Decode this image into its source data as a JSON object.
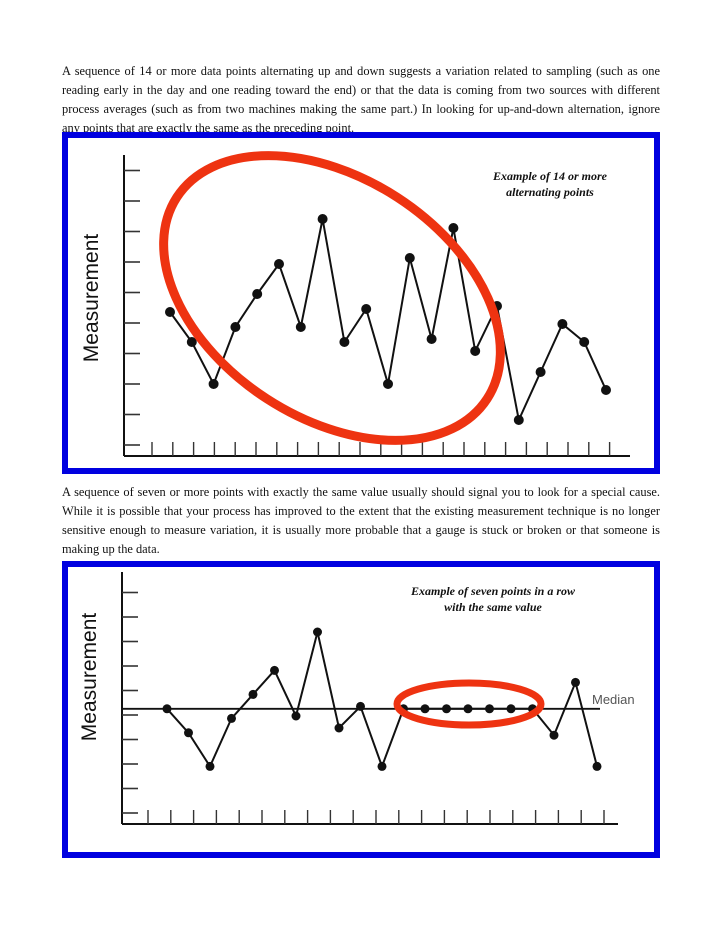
{
  "paragraphs": {
    "p1": "A sequence of 14 or more data points alternating up and down suggests a variation related to sampling (such as one reading early in the day and one reading toward the end) or that the data is coming from two sources with different process averages (such as from two machines making the same part.) In looking for up-and-down alternation, ignore any points that are exactly the same as the preceding point.",
    "p2": "A sequence of seven or more points with exactly the same value usually should signal you to look for a special cause. While it is possible that your process has improved to the extent that the existing measurement technique is no longer sensitive enough to measure variation, it is usually more probable that a gauge is stuck or broken or that someone is making up the data."
  },
  "colors": {
    "frame": "#0000e0",
    "highlight": "#ee3311",
    "line": "#111111"
  },
  "chart_data": [
    {
      "type": "line",
      "title": "",
      "annotation": [
        "Example of 14 or more",
        "alternating points"
      ],
      "ylabel": "Measurement",
      "xlabel": "",
      "y_ticks": 10,
      "x_ticks": 23,
      "grid": false,
      "x": [
        1,
        2,
        3,
        4,
        5,
        6,
        7,
        8,
        9,
        10,
        11,
        12,
        13,
        14,
        15,
        16,
        17,
        18,
        19,
        20,
        21
      ],
      "values": [
        4.8,
        3.8,
        2.4,
        4.3,
        5.4,
        6.4,
        4.3,
        7.9,
        3.8,
        4.9,
        2.4,
        6.6,
        3.9,
        7.6,
        3.5,
        5.0,
        1.2,
        2.8,
        4.4,
        3.8,
        2.2
      ],
      "ylim": [
        0,
        10
      ],
      "highlight": "red ellipse enclosing points 5–18 (alternating run)"
    },
    {
      "type": "line",
      "title": "",
      "annotation": [
        "Example of seven points in a row",
        "with the same value"
      ],
      "ylabel": "Measurement",
      "xlabel": "",
      "reference_line": {
        "label": "Median",
        "value": 4.8
      },
      "y_ticks": 10,
      "x_ticks": 21,
      "grid": false,
      "x": [
        1,
        2,
        3,
        4,
        5,
        6,
        7,
        8,
        9,
        10,
        11,
        12,
        13,
        14,
        15,
        16,
        17,
        18,
        19,
        20,
        21
      ],
      "values": [
        4.8,
        3.8,
        2.4,
        4.4,
        5.4,
        6.4,
        4.5,
        8.0,
        4.0,
        4.9,
        2.4,
        4.8,
        4.8,
        4.8,
        4.8,
        4.8,
        4.8,
        4.8,
        3.7,
        5.9,
        2.4
      ],
      "ylim": [
        0,
        10
      ],
      "highlight": "red ellipse enclosing points 12–18 (seven identical values on median)"
    }
  ]
}
